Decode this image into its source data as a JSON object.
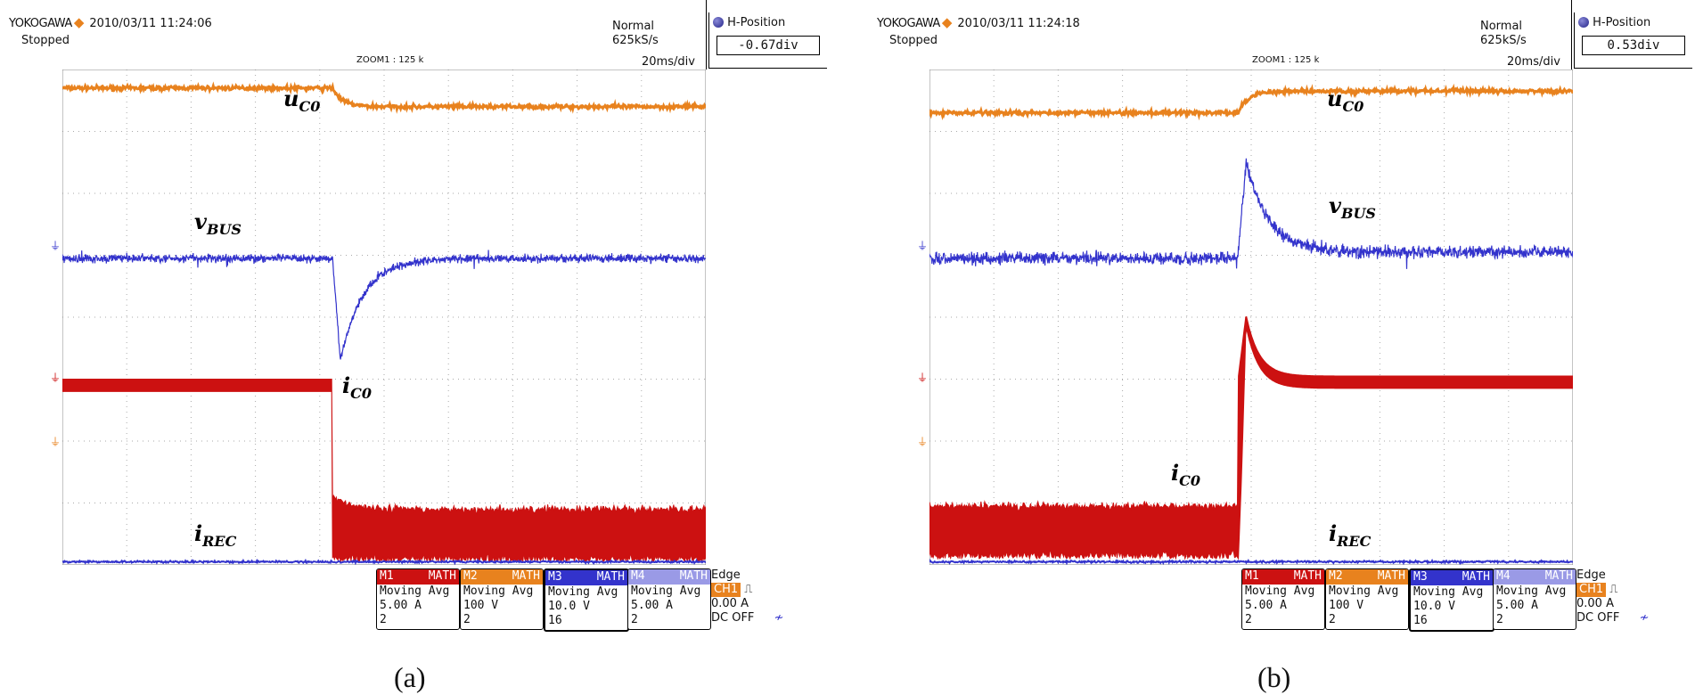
{
  "panels": [
    {
      "brand": "YOKOGAWA",
      "datetime": "2010/03/11 11:24:06",
      "status": "Stopped",
      "trigger_mode": "Normal",
      "sample_rate": "625kS/s",
      "zoom": "ZOOM1 : 125 k",
      "timebase": "20ms/div",
      "hpos_title": "H-Position",
      "hpos_value": "-0.67div",
      "caption": "(a)",
      "labels": {
        "uc0": "u",
        "uc0_sub": "C0",
        "vbus": "v",
        "vbus_sub": "BUS",
        "ic0": "i",
        "ic0_sub": "C0",
        "irec": "i",
        "irec_sub": "REC"
      },
      "channels": [
        {
          "name": "M1",
          "mode": "MATH",
          "func": "Moving Avg",
          "scale": "5.00 A",
          "avg": "2",
          "color": "#cc1111"
        },
        {
          "name": "M2",
          "mode": "MATH",
          "func": "Moving Avg",
          "scale": "100 V",
          "avg": "2",
          "color": "#e8821e"
        },
        {
          "name": "M3",
          "mode": "MATH",
          "func": "Moving Avg",
          "scale": "10.0 V",
          "avg": "16",
          "color": "#3333cc"
        },
        {
          "name": "M4",
          "mode": "MATH",
          "func": "Moving Avg",
          "scale": "5.00 A",
          "avg": "2",
          "color": "#9a9ae6"
        }
      ],
      "trigger": {
        "type": "Edge",
        "source": "CH1",
        "level": "0.00 A",
        "coupling": "DC OFF"
      }
    },
    {
      "brand": "YOKOGAWA",
      "datetime": "2010/03/11 11:24:18",
      "status": "Stopped",
      "trigger_mode": "Normal",
      "sample_rate": "625kS/s",
      "zoom": "ZOOM1 : 125 k",
      "timebase": "20ms/div",
      "hpos_title": "H-Position",
      "hpos_value": "0.53div",
      "caption": "(b)",
      "labels": {
        "uc0": "u",
        "uc0_sub": "C0",
        "vbus": "v",
        "vbus_sub": "BUS",
        "ic0": "i",
        "ic0_sub": "C0",
        "irec": "i",
        "irec_sub": "REC"
      },
      "channels": [
        {
          "name": "M1",
          "mode": "MATH",
          "func": "Moving Avg",
          "scale": "5.00 A",
          "avg": "2",
          "color": "#cc1111"
        },
        {
          "name": "M2",
          "mode": "MATH",
          "func": "Moving Avg",
          "scale": "100 V",
          "avg": "2",
          "color": "#e8821e"
        },
        {
          "name": "M3",
          "mode": "MATH",
          "func": "Moving Avg",
          "scale": "10.0 V",
          "avg": "16",
          "color": "#3333cc"
        },
        {
          "name": "M4",
          "mode": "MATH",
          "func": "Moving Avg",
          "scale": "5.00 A",
          "avg": "2",
          "color": "#9a9ae6"
        }
      ],
      "trigger": {
        "type": "Edge",
        "source": "CH1",
        "level": "0.00 A",
        "coupling": "DC OFF"
      }
    }
  ],
  "chart_data": [
    {
      "type": "line",
      "title": "",
      "xlabel": "",
      "ylabel": "",
      "x_divisions": 10,
      "y_divisions": 8,
      "grid": true,
      "event_time_div": 4.2,
      "series": [
        {
          "name": "u_C0",
          "color": "#e8821e",
          "before_div": 7.7,
          "after_div": 7.4,
          "noise_div": 0.04
        },
        {
          "name": "v_BUS",
          "color": "#3333cc",
          "before_div": 4.95,
          "dip_div": 3.3,
          "after_div": 4.95,
          "noise_div": 0.08
        },
        {
          "name": "i_C0",
          "color": "#cc1111",
          "before_div": 2.9,
          "after_low_div": 0.05,
          "after_high_div": 0.9,
          "noise_div": 0.1
        },
        {
          "name": "i_REC",
          "color": "#3333cc",
          "level_div": 0.05
        }
      ]
    },
    {
      "type": "line",
      "title": "",
      "xlabel": "",
      "ylabel": "",
      "x_divisions": 10,
      "y_divisions": 8,
      "grid": true,
      "event_time_div": 4.8,
      "series": [
        {
          "name": "u_C0",
          "color": "#e8821e",
          "before_div": 7.3,
          "after_div": 7.65,
          "noise_div": 0.04
        },
        {
          "name": "v_BUS",
          "color": "#3333cc",
          "before_div": 4.95,
          "peak_div": 6.5,
          "after_div": 5.05,
          "noise_div": 0.12
        },
        {
          "name": "i_C0",
          "color": "#cc1111",
          "before_low_div": 0.1,
          "before_high_div": 0.95,
          "peak_div": 3.95,
          "after_div": 2.95,
          "noise_div": 0.1
        },
        {
          "name": "i_REC",
          "color": "#3333cc",
          "level_div": 0.05
        }
      ]
    }
  ]
}
